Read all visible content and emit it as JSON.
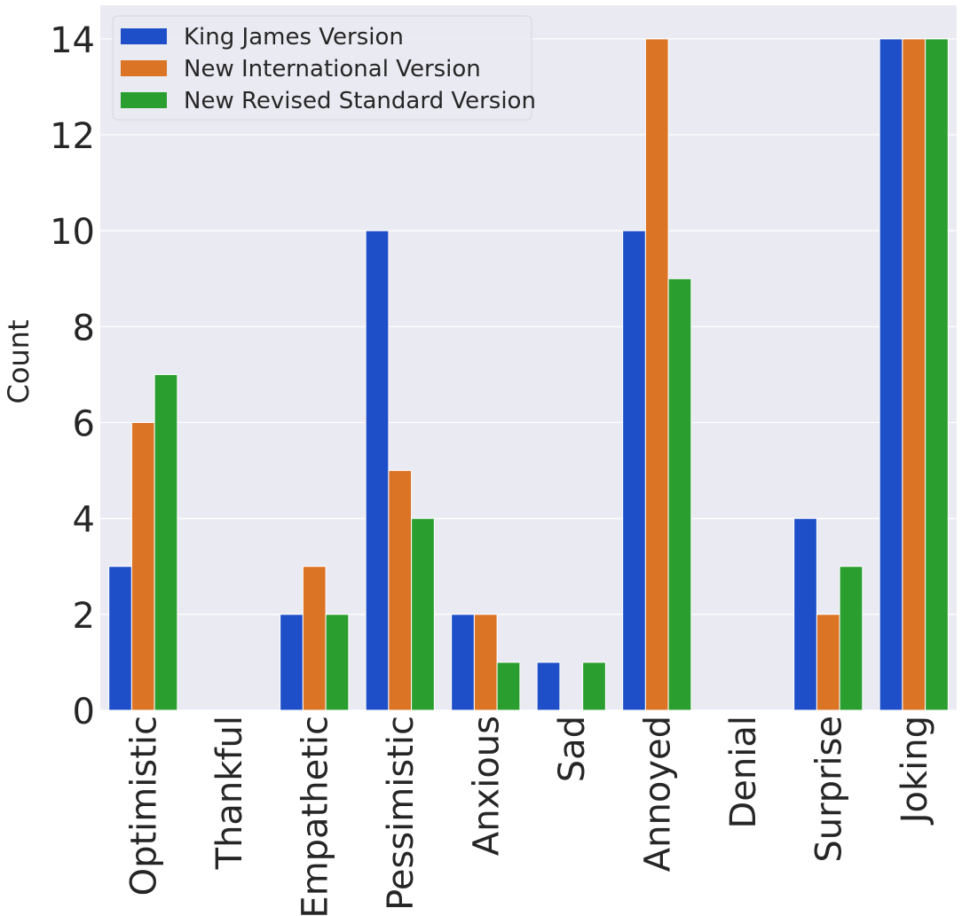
{
  "chart_data": {
    "type": "bar",
    "categories": [
      "Optimistic",
      "Thankful",
      "Empathetic",
      "Pessimistic",
      "Anxious",
      "Sad",
      "Annoyed",
      "Denial",
      "Surprise",
      "Joking"
    ],
    "series": [
      {
        "name": "King James Version",
        "values": [
          3,
          0,
          2,
          10,
          2,
          1,
          10,
          0,
          4,
          14
        ],
        "color": "#1f4fc8"
      },
      {
        "name": "New International Version",
        "values": [
          6,
          0,
          3,
          5,
          2,
          0,
          14,
          0,
          2,
          14
        ],
        "color": "#dc7426"
      },
      {
        "name": "New Revised Standard Version",
        "values": [
          7,
          0,
          2,
          4,
          1,
          1,
          9,
          0,
          3,
          14
        ],
        "color": "#2a9e2f"
      }
    ],
    "ylabel": "Count",
    "xlabel": "",
    "ylim": [
      0,
      14.7
    ],
    "yticks": [
      0,
      2,
      4,
      6,
      8,
      10,
      12,
      14
    ],
    "grid": true,
    "legend_position": "top-left",
    "background_color": "#eaeaf2",
    "grid_color": "#ffffff",
    "text_color": "#262626"
  }
}
